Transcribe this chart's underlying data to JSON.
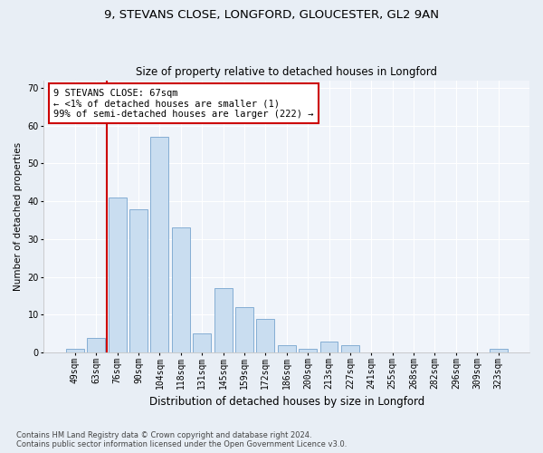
{
  "title_line1": "9, STEVANS CLOSE, LONGFORD, GLOUCESTER, GL2 9AN",
  "title_line2": "Size of property relative to detached houses in Longford",
  "xlabel": "Distribution of detached houses by size in Longford",
  "ylabel": "Number of detached properties",
  "categories": [
    "49sqm",
    "63sqm",
    "76sqm",
    "90sqm",
    "104sqm",
    "118sqm",
    "131sqm",
    "145sqm",
    "159sqm",
    "172sqm",
    "186sqm",
    "200sqm",
    "213sqm",
    "227sqm",
    "241sqm",
    "255sqm",
    "268sqm",
    "282sqm",
    "296sqm",
    "309sqm",
    "323sqm"
  ],
  "values": [
    1,
    4,
    41,
    38,
    57,
    33,
    5,
    17,
    12,
    9,
    2,
    1,
    3,
    2,
    0,
    0,
    0,
    0,
    0,
    0,
    1
  ],
  "bar_color": "#c9ddf0",
  "bar_edge_color": "#85aed4",
  "vline_x": 1.5,
  "vline_color": "#cc0000",
  "annotation_box_text": "9 STEVANS CLOSE: 67sqm\n← <1% of detached houses are smaller (1)\n99% of semi-detached houses are larger (222) →",
  "annotation_box_color": "#cc0000",
  "ylim": [
    0,
    72
  ],
  "yticks": [
    0,
    10,
    20,
    30,
    40,
    50,
    60,
    70
  ],
  "footnote": "Contains HM Land Registry data © Crown copyright and database right 2024.\nContains public sector information licensed under the Open Government Licence v3.0.",
  "background_color": "#e8eef5",
  "plot_background_color": "#f0f4fa",
  "grid_color": "#ffffff",
  "title1_fontsize": 9.5,
  "title2_fontsize": 8.5,
  "ylabel_fontsize": 7.5,
  "xlabel_fontsize": 8.5,
  "tick_fontsize": 7,
  "annot_fontsize": 7.5,
  "footnote_fontsize": 6
}
